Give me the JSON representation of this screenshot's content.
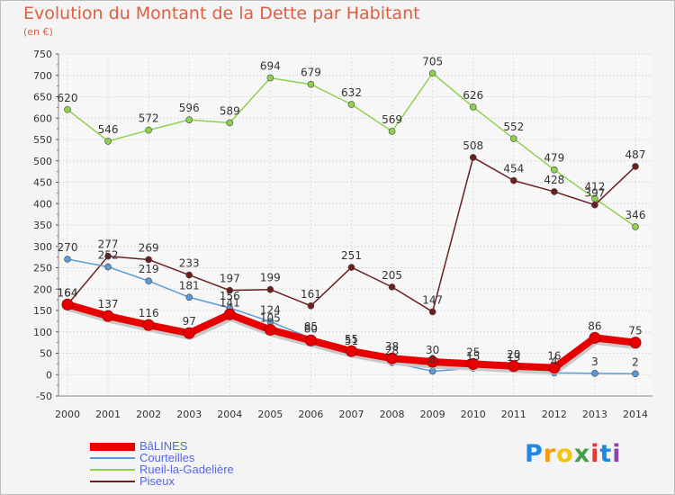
{
  "chart_data": {
    "type": "line",
    "title": "Evolution du Montant de la Dette par Habitant",
    "subtitle": "(en €)",
    "xlabel": "",
    "ylabel": "",
    "x": [
      "2000",
      "2001",
      "2002",
      "2003",
      "2004",
      "2005",
      "2006",
      "2007",
      "2008",
      "2009",
      "2010",
      "2011",
      "2012",
      "2013",
      "2014"
    ],
    "ylim": [
      -50,
      750
    ],
    "yticks": [
      "-50",
      "0",
      "50",
      "100",
      "150",
      "200",
      "250",
      "300",
      "350",
      "400",
      "450",
      "500",
      "550",
      "600",
      "650",
      "700",
      "750"
    ],
    "grid": true,
    "legend_position": "bottom-left",
    "series": [
      {
        "name": "BâLINES",
        "color": "#e80000",
        "values": [
          164,
          137,
          116,
          97,
          141,
          105,
          80,
          55,
          38,
          30,
          25,
          20,
          16,
          86,
          75
        ],
        "labels": [
          "164",
          "137",
          "116",
          "97",
          "141",
          "105",
          "80",
          "55",
          "38",
          "30",
          "25",
          "20",
          "16",
          "86",
          "75"
        ]
      },
      {
        "name": "Courteilles",
        "color": "#5b9bd5",
        "values": [
          270,
          252,
          219,
          181,
          156,
          124,
          85,
          51,
          28,
          8,
          15,
          13,
          4,
          3,
          2
        ],
        "labels": [
          "270",
          "252",
          "219",
          "181",
          "156",
          "124",
          "85",
          "51",
          "28",
          "8",
          "15",
          "13",
          "4",
          "3",
          "2"
        ]
      },
      {
        "name": "Rueil-la-Gadelière",
        "color": "#8fd14f",
        "values": [
          620,
          546,
          572,
          596,
          589,
          694,
          679,
          632,
          569,
          705,
          626,
          552,
          479,
          412,
          346
        ],
        "labels": [
          "620",
          "546",
          "572",
          "596",
          "589",
          "694",
          "679",
          "632",
          "569",
          "705",
          "626",
          "552",
          "479",
          "412",
          "346"
        ]
      },
      {
        "name": "Piseux",
        "color": "#6b1f1f",
        "values": [
          164,
          277,
          269,
          233,
          197,
          199,
          161,
          251,
          205,
          147,
          508,
          454,
          428,
          397,
          487
        ],
        "labels": [
          "164",
          "277",
          "269",
          "233",
          "197",
          "199",
          "161",
          "251",
          "205",
          "147",
          "508",
          "454",
          "428",
          "397",
          "487"
        ]
      }
    ]
  },
  "logo": {
    "letters": [
      "P",
      "r",
      "o",
      "x",
      "i",
      "t",
      "i"
    ],
    "colors": [
      "#1e88e5",
      "#f39c12",
      "#f1c40f",
      "#43a047",
      "#e53935",
      "#1e88e5",
      "#8e44ad"
    ]
  }
}
